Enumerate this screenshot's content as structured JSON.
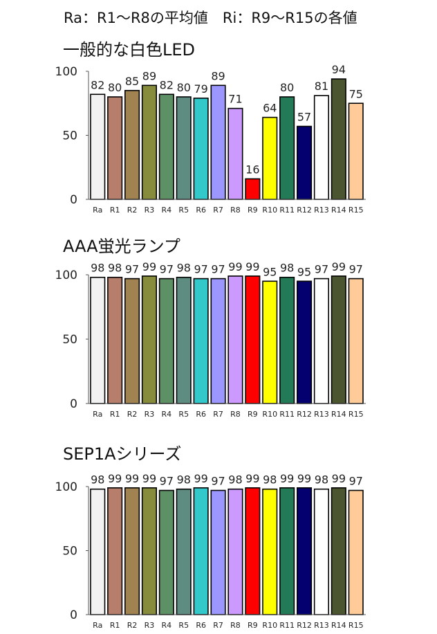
{
  "header": {
    "note": "Ra：R1～R8の平均値　Ri：R9～R15の各値"
  },
  "colors": [
    "#f2f2f2",
    "#b77e6b",
    "#a08350",
    "#868c3c",
    "#5e9065",
    "#5e8c81",
    "#33c9cb",
    "#9c96ff",
    "#cc99ff",
    "#ff0000",
    "#ffff00",
    "#227a57",
    "#050070",
    "#ffffff",
    "#4b5530",
    "#ffcc99"
  ],
  "chart_data": [
    {
      "type": "bar",
      "title": "一般的な白色LED",
      "categories": [
        "Ra",
        "R1",
        "R2",
        "R3",
        "R4",
        "R5",
        "R6",
        "R7",
        "R8",
        "R9",
        "R10",
        "R11",
        "R12",
        "R13",
        "R14",
        "R15"
      ],
      "values": [
        82,
        80,
        85,
        89,
        82,
        80,
        79,
        89,
        71,
        16,
        64,
        80,
        57,
        81,
        94,
        75
      ],
      "yticks": [
        "0",
        "50",
        "100"
      ],
      "ylim": [
        0,
        100
      ],
      "grid": false
    },
    {
      "type": "bar",
      "title": "AAA蛍光ランプ",
      "categories": [
        "Ra",
        "R1",
        "R2",
        "R3",
        "R4",
        "R5",
        "R6",
        "R7",
        "R8",
        "R9",
        "R10",
        "R11",
        "R12",
        "R13",
        "R14",
        "R15"
      ],
      "values": [
        98,
        98,
        97,
        99,
        97,
        98,
        97,
        97,
        99,
        99,
        95,
        98,
        95,
        97,
        99,
        97
      ],
      "yticks": [
        "0",
        "50",
        "100"
      ],
      "ylim": [
        0,
        100
      ],
      "grid": false
    },
    {
      "type": "bar",
      "title": "SEP1Aシリーズ",
      "categories": [
        "Ra",
        "R1",
        "R2",
        "R3",
        "R4",
        "R5",
        "R6",
        "R7",
        "R8",
        "R9",
        "R10",
        "R11",
        "R12",
        "R13",
        "R14",
        "R15"
      ],
      "values": [
        98,
        99,
        99,
        99,
        97,
        98,
        99,
        97,
        98,
        99,
        98,
        99,
        99,
        98,
        99,
        97
      ],
      "yticks": [
        "0",
        "50",
        "100"
      ],
      "ylim": [
        0,
        100
      ],
      "grid": false
    }
  ]
}
